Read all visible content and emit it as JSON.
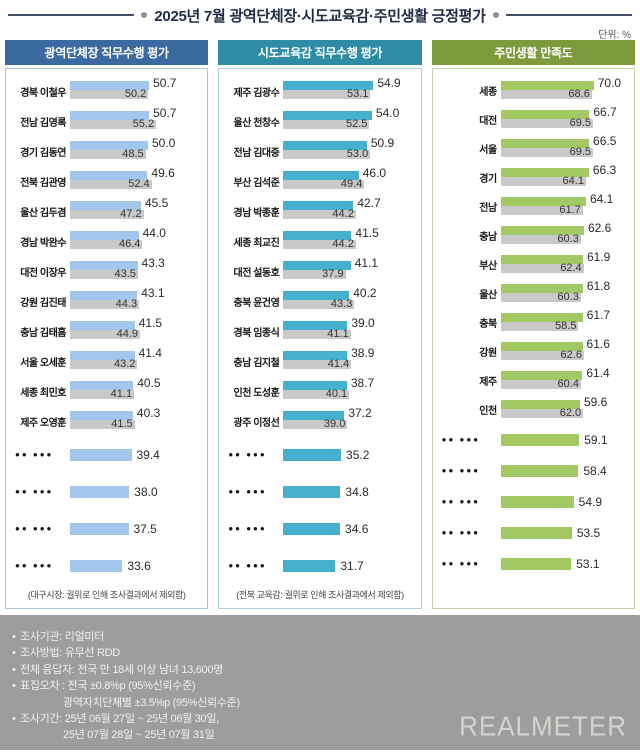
{
  "title": "2025년 7월 광역단체장·시도교육감·주민생활 긍정평가",
  "unit_label": "단위: %",
  "chart_data": [
    {
      "id": "governor-approval",
      "type": "bar",
      "title": "광역단체장 직무수행 평가",
      "orientation": "horizontal",
      "series_note": "colored bar = current month, gray bar = previous month",
      "header_color": "#3b6aa0",
      "bar_color": "#a2c6ec",
      "prev_color": "#c9c9c9",
      "border_color": "#a9c3dd",
      "xlim": [
        0,
        65
      ],
      "note": "(대구시장: 궐위로 인해 조사결과에서 제외함)",
      "entries": [
        {
          "label": "경북 이철우",
          "value": 50.7,
          "prev": 50.2
        },
        {
          "label": "전남 김영록",
          "value": 50.7,
          "prev": 55.2
        },
        {
          "label": "경기 김동연",
          "value": 50.0,
          "prev": 48.5
        },
        {
          "label": "전북 김관영",
          "value": 49.6,
          "prev": 52.4
        },
        {
          "label": "울산 김두겸",
          "value": 45.5,
          "prev": 47.2
        },
        {
          "label": "경남 박완수",
          "value": 44.0,
          "prev": 46.4
        },
        {
          "label": "대전 이장우",
          "value": 43.3,
          "prev": 43.5
        },
        {
          "label": "강원 김진태",
          "value": 43.1,
          "prev": 44.3
        },
        {
          "label": "충남 김태흠",
          "value": 41.5,
          "prev": 44.9
        },
        {
          "label": "서울 오세훈",
          "value": 41.4,
          "prev": 43.2
        },
        {
          "label": "세종 최민호",
          "value": 40.5,
          "prev": 41.1
        },
        {
          "label": "제주 오영훈",
          "value": 40.3,
          "prev": 41.5
        },
        {
          "label": "●●  ●●●",
          "value": 39.4,
          "masked": true
        },
        {
          "label": "●●  ●●●",
          "value": 38.0,
          "masked": true
        },
        {
          "label": "●●  ●●●",
          "value": 37.5,
          "masked": true
        },
        {
          "label": "●●  ●●●",
          "value": 33.6,
          "masked": true
        }
      ]
    },
    {
      "id": "superintendent-approval",
      "type": "bar",
      "title": "시도교육감 직무수행 평가",
      "orientation": "horizontal",
      "series_note": "colored bar = current month, gray bar = previous month",
      "header_color": "#2e8ca6",
      "bar_color": "#45b1cc",
      "prev_color": "#c9c9c9",
      "border_color": "#a9d3de",
      "xlim": [
        0,
        65
      ],
      "note": "(전북 교육감: 궐위로 인해 조사결과에서 제외함)",
      "entries": [
        {
          "label": "제주 김광수",
          "value": 54.9,
          "prev": 53.1
        },
        {
          "label": "울산 천창수",
          "value": 54.0,
          "prev": 52.5
        },
        {
          "label": "전남 김대중",
          "value": 50.9,
          "prev": 53.0
        },
        {
          "label": "부산 김석준",
          "value": 46.0,
          "prev": 49.4
        },
        {
          "label": "경남 박종훈",
          "value": 42.7,
          "prev": 44.2
        },
        {
          "label": "세종 최교진",
          "value": 41.5,
          "prev": 44.2
        },
        {
          "label": "대전 설동호",
          "value": 41.1,
          "prev": 37.9
        },
        {
          "label": "충북 윤건영",
          "value": 40.2,
          "prev": 43.3
        },
        {
          "label": "경북 임종식",
          "value": 39.0,
          "prev": 41.1
        },
        {
          "label": "충남 김지철",
          "value": 38.9,
          "prev": 41.4
        },
        {
          "label": "인천 도성훈",
          "value": 38.7,
          "prev": 40.1
        },
        {
          "label": "광주 이정선",
          "value": 37.2,
          "prev": 39.0
        },
        {
          "label": "●●  ●●●",
          "value": 35.2,
          "masked": true
        },
        {
          "label": "●●  ●●●",
          "value": 34.8,
          "masked": true
        },
        {
          "label": "●●  ●●●",
          "value": 34.6,
          "masked": true
        },
        {
          "label": "●●  ●●●",
          "value": 31.7,
          "masked": true
        }
      ]
    },
    {
      "id": "resident-life-satisfaction",
      "type": "bar",
      "title": "주민생활 만족도",
      "orientation": "horizontal",
      "series_note": "colored bar = current month, gray bar = previous month",
      "header_color": "#7d9b3c",
      "bar_color": "#a3c964",
      "prev_color": "#c9c9c9",
      "border_color": "#c3d2a2",
      "xlim": [
        0,
        75
      ],
      "entries": [
        {
          "label": "세종",
          "value": 70.0,
          "prev": 68.6
        },
        {
          "label": "대전",
          "value": 66.7,
          "prev": 69.5
        },
        {
          "label": "서울",
          "value": 66.5,
          "prev": 69.5
        },
        {
          "label": "경기",
          "value": 66.3,
          "prev": 64.1
        },
        {
          "label": "전남",
          "value": 64.1,
          "prev": 61.7
        },
        {
          "label": "충남",
          "value": 62.6,
          "prev": 60.3
        },
        {
          "label": "부산",
          "value": 61.9,
          "prev": 62.4
        },
        {
          "label": "울산",
          "value": 61.8,
          "prev": 60.3
        },
        {
          "label": "충북",
          "value": 61.7,
          "prev": 58.5
        },
        {
          "label": "강원",
          "value": 61.6,
          "prev": 62.6
        },
        {
          "label": "제주",
          "value": 61.4,
          "prev": 60.4
        },
        {
          "label": "인천",
          "value": 59.6,
          "prev": 62.0
        },
        {
          "label": "●●  ●●●",
          "value": 59.1,
          "masked": true
        },
        {
          "label": "●●  ●●●",
          "value": 58.4,
          "masked": true
        },
        {
          "label": "●●  ●●●",
          "value": 54.9,
          "masked": true
        },
        {
          "label": "●●  ●●●",
          "value": 53.5,
          "masked": true
        },
        {
          "label": "●●  ●●●",
          "value": 53.1,
          "masked": true
        }
      ]
    }
  ],
  "footer": {
    "items": [
      {
        "text": "조사기관: 리얼미터"
      },
      {
        "text": "조사방법: 유무선 RDD"
      },
      {
        "text": "전체 응답자: 전국 만 18세 이상 남녀 13,600명"
      },
      {
        "text": "표집오차 : 전국 ±0.8%p (95%신뢰수준)",
        "cont": "광역자치단체별 ±3.5%p (95%신뢰수준)"
      },
      {
        "text": "조사기간: 25년 06월 27일 ~ 25년 06월 30일,",
        "cont": "25년 07월 28일 ~ 25년 07월 31일"
      }
    ],
    "logo": "REALMETER"
  }
}
